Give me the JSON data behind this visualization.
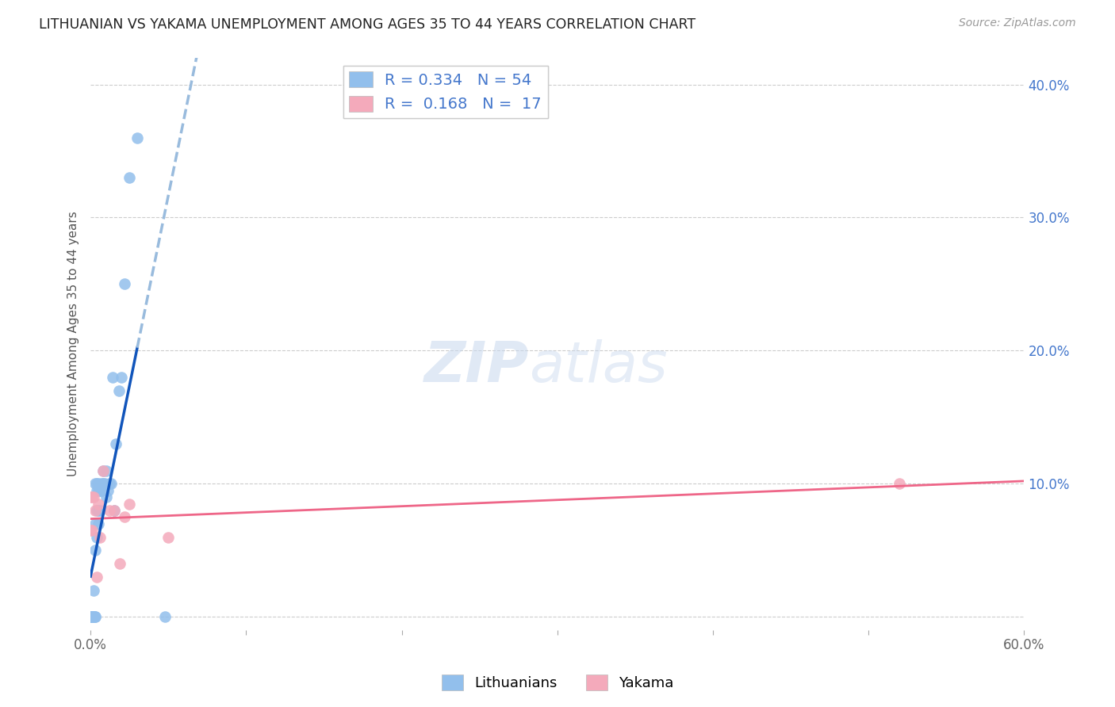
{
  "title": "LITHUANIAN VS YAKAMA UNEMPLOYMENT AMONG AGES 35 TO 44 YEARS CORRELATION CHART",
  "source": "Source: ZipAtlas.com",
  "ylabel": "Unemployment Among Ages 35 to 44 years",
  "xlim": [
    0.0,
    0.6
  ],
  "ylim": [
    -0.01,
    0.42
  ],
  "x_ticks": [
    0.0,
    0.1,
    0.2,
    0.3,
    0.4,
    0.5,
    0.6
  ],
  "y_ticks": [
    0.0,
    0.1,
    0.2,
    0.3,
    0.4
  ],
  "lithuanian_color": "#92BFEC",
  "yakama_color": "#F4AABB",
  "trend_line_blue_solid_color": "#1155BB",
  "trend_line_blue_dashed_color": "#99BBDD",
  "trend_line_pink_color": "#EE6688",
  "watermark_part1": "ZIP",
  "watermark_part2": "atlas",
  "legend_R_blue": "0.334",
  "legend_N_blue": "54",
  "legend_R_pink": "0.168",
  "legend_N_pink": "17",
  "legend_color": "#4477CC",
  "background_color": "#FFFFFF",
  "grid_color": "#CCCCCC",
  "lith_x": [
    0.0,
    0.0,
    0.0,
    0.0,
    0.0,
    0.0,
    0.0,
    0.0,
    0.001,
    0.001,
    0.001,
    0.001,
    0.001,
    0.001,
    0.002,
    0.002,
    0.002,
    0.002,
    0.002,
    0.003,
    0.003,
    0.003,
    0.003,
    0.003,
    0.004,
    0.004,
    0.004,
    0.004,
    0.005,
    0.005,
    0.005,
    0.005,
    0.006,
    0.006,
    0.007,
    0.007,
    0.007,
    0.008,
    0.008,
    0.009,
    0.01,
    0.01,
    0.011,
    0.012,
    0.013,
    0.014,
    0.015,
    0.016,
    0.018,
    0.02,
    0.022,
    0.025,
    0.03,
    0.048
  ],
  "lith_y": [
    0.0,
    0.0,
    0.0,
    0.0,
    0.0,
    0.0,
    0.0,
    0.0,
    0.0,
    0.0,
    0.0,
    0.0,
    0.0,
    0.0,
    0.0,
    0.0,
    0.0,
    0.0,
    0.02,
    0.0,
    0.0,
    0.05,
    0.07,
    0.1,
    0.06,
    0.08,
    0.095,
    0.1,
    0.07,
    0.08,
    0.095,
    0.1,
    0.08,
    0.095,
    0.095,
    0.095,
    0.1,
    0.1,
    0.11,
    0.1,
    0.09,
    0.11,
    0.095,
    0.1,
    0.1,
    0.18,
    0.08,
    0.13,
    0.17,
    0.18,
    0.25,
    0.33,
    0.36,
    0.0
  ],
  "yak_x": [
    0.0,
    0.0,
    0.001,
    0.001,
    0.002,
    0.003,
    0.004,
    0.005,
    0.006,
    0.008,
    0.012,
    0.015,
    0.019,
    0.022,
    0.025,
    0.05,
    0.52
  ],
  "yak_y": [
    0.065,
    0.09,
    0.065,
    0.09,
    0.09,
    0.08,
    0.03,
    0.085,
    0.06,
    0.11,
    0.08,
    0.08,
    0.04,
    0.075,
    0.085,
    0.06,
    0.1
  ],
  "blue_trend_x_start": 0.0,
  "blue_trend_x_break": 0.03,
  "blue_trend_x_end": 0.6,
  "pink_trend_x_start": 0.0,
  "pink_trend_x_end": 0.6
}
